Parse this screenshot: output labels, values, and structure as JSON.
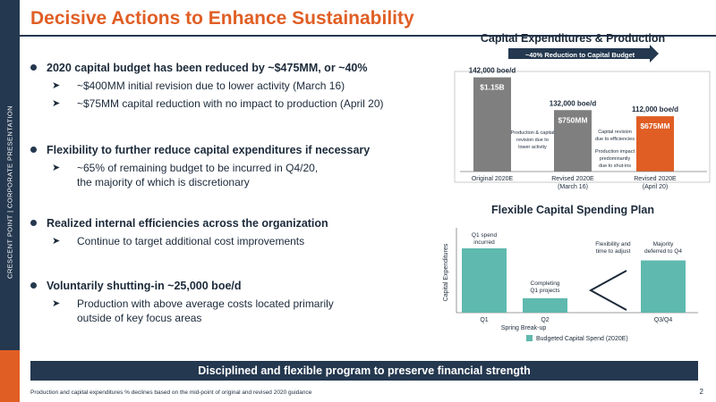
{
  "sidebar": {
    "label": "CRESCENT POINT   |   CORPORATE PRESENTATION"
  },
  "title": "Decisive Actions to Enhance Sustainability",
  "bullets": [
    {
      "main": "2020 capital budget has been reduced by ~$475MM, or ~40%",
      "subs": [
        "~$400MM initial revision due to lower activity (March 16)",
        "~$75MM capital reduction with no impact to production (April 20)"
      ]
    },
    {
      "main": "Flexibility to further reduce capital expenditures if necessary",
      "subs": [
        "~65% of remaining budget to be incurred in Q4/20,",
        "the majority of which is discretionary"
      ]
    },
    {
      "main": "Realized internal efficiencies across the organization",
      "subs": [
        "Continue to target additional cost improvements"
      ]
    },
    {
      "main": "Voluntarily shutting-in ~25,000 boe/d",
      "subs": [
        "Production with above average costs located primarily",
        "outside of key focus areas"
      ]
    }
  ],
  "chart1": {
    "title": "Capital Expenditures & Production",
    "arrow_label": "~40% Reduction to Capital Budget",
    "note1": [
      "Production & capital",
      "revision due to",
      "lower activity"
    ],
    "note2a": [
      "Capital revision",
      "due to efficiencies"
    ],
    "note2b": [
      "Production impact",
      "predominantly",
      "due to shut-ins"
    ]
  },
  "chart2": {
    "title": "Flexible Capital Spending Plan",
    "ylabel": "Capital Expenditures",
    "legend": "Budgeted Capital Spend (2020E)",
    "xlabels": [
      "Q1",
      "Q2",
      "Q3/Q4"
    ],
    "sublabel": "Spring Break-up",
    "ann_q1": [
      "Q1 spend",
      "incurred"
    ],
    "ann_q2": [
      "Completing",
      "Q1 projects"
    ],
    "ann_flex": [
      "Flexibility and",
      "time to adjust"
    ],
    "ann_maj": [
      "Majority",
      "deferred to Q4"
    ]
  },
  "chart_data": [
    {
      "type": "bar",
      "title": "Capital Expenditures & Production",
      "categories": [
        "Original 2020E",
        "Revised 2020E\n(March 16)",
        "Revised 2020E\n(April 20)"
      ],
      "values": [
        1150,
        750,
        675
      ],
      "value_labels": [
        "$1.15B",
        "$750MM",
        "$675MM"
      ],
      "production_labels": [
        "142,000 boe/d",
        "132,000 boe/d",
        "112,000 boe/d"
      ],
      "colors": [
        "#7f7f7f",
        "#7f7f7f",
        "#e05e24"
      ],
      "ylim": [
        0,
        1200
      ]
    },
    {
      "type": "bar",
      "title": "Flexible Capital Spending Plan",
      "categories": [
        "Q1",
        "Q2",
        "Q3/Q4"
      ],
      "series": [
        {
          "name": "Budgeted Capital Spend (2020E)",
          "values": [
            80,
            18,
            65
          ]
        }
      ],
      "ylabel": "Capital Expenditures",
      "ylim": [
        0,
        100
      ],
      "color": "#5fb9ae"
    }
  ],
  "banner": "Disciplined and flexible program to preserve financial strength",
  "footnote": "Production and capital expenditures % declines based on the mid-point of original and revised 2020 guidance",
  "page_number": "2"
}
